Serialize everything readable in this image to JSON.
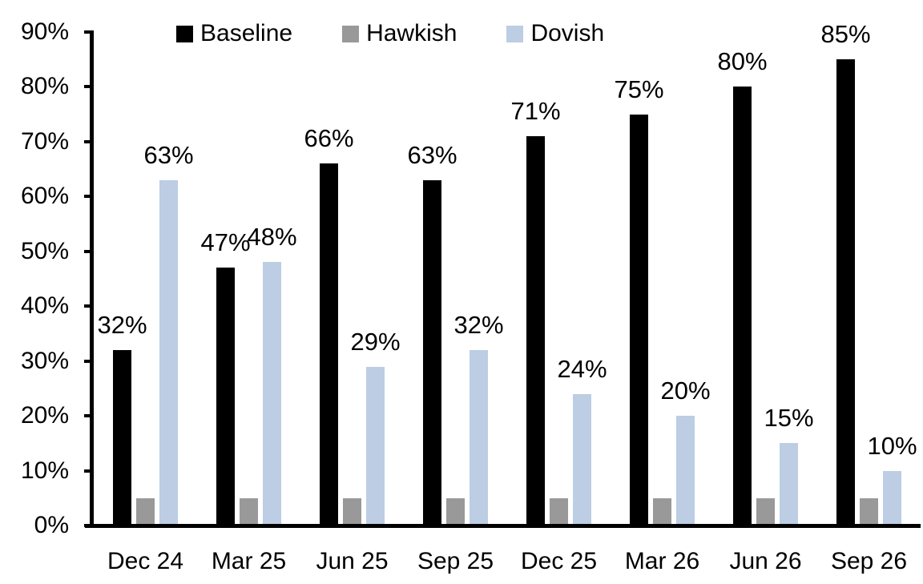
{
  "chart_data": {
    "type": "bar",
    "categories": [
      "Dec 24",
      "Mar 25",
      "Jun 25",
      "Sep 25",
      "Dec 25",
      "Mar 26",
      "Jun 26",
      "Sep 26"
    ],
    "series": [
      {
        "name": "Baseline",
        "color": "#000000",
        "values": [
          32,
          47,
          66,
          63,
          71,
          75,
          80,
          85
        ],
        "show_labels": true
      },
      {
        "name": "Hawkish",
        "color": "#999999",
        "values": [
          5,
          5,
          5,
          5,
          5,
          5,
          5,
          5
        ],
        "show_labels": false
      },
      {
        "name": "Dovish",
        "color": "#BCCDE4",
        "values": [
          63,
          48,
          29,
          32,
          24,
          20,
          15,
          10
        ],
        "show_labels": true
      }
    ],
    "data_label_format": "{v}%",
    "ylim": [
      0,
      90
    ],
    "ytick_step": 10,
    "ytick_labels": [
      "0%",
      "10%",
      "20%",
      "30%",
      "40%",
      "50%",
      "60%",
      "70%",
      "80%",
      "90%"
    ],
    "grid": false,
    "legend_position": "top",
    "axis_color": "#000000",
    "background_color": "#ffffff"
  }
}
